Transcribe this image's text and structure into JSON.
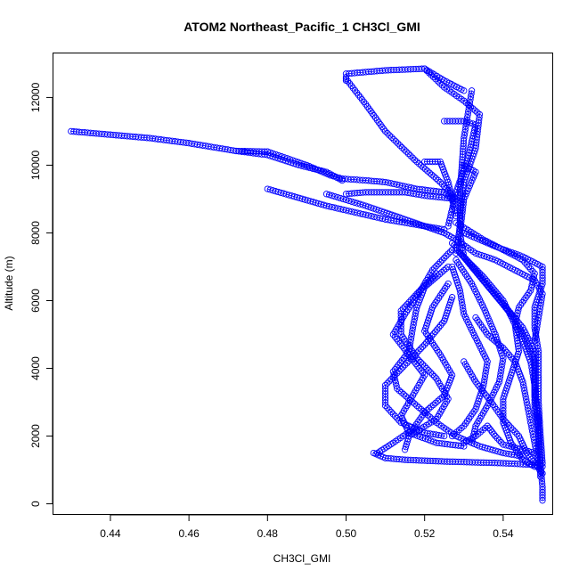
{
  "chart_data": {
    "type": "scatter",
    "title": "ATOM2 Northeast_Pacific_1 CH3Cl_GMI",
    "xlabel": "CH3Cl_GMI",
    "ylabel": "Altitude (m)",
    "xlim": [
      0.4255,
      0.5525
    ],
    "ylim": [
      -300,
      13300
    ],
    "x_ticks": [
      0.44,
      0.46,
      0.48,
      0.5,
      0.52,
      0.54
    ],
    "x_tick_labels": [
      "0.44",
      "0.46",
      "0.48",
      "0.50",
      "0.52",
      "0.54"
    ],
    "y_ticks": [
      0,
      2000,
      4000,
      6000,
      8000,
      10000,
      12000
    ],
    "y_tick_labels": [
      "0",
      "2000",
      "4000",
      "6000",
      "8000",
      "10000",
      "12000"
    ],
    "grid": false,
    "marker": "open circle",
    "series": [
      {
        "color": "#0000ff",
        "segments": [
          [
            [
              0.43,
              11000
            ],
            [
              0.432,
              10980
            ],
            [
              0.44,
              10900
            ],
            [
              0.45,
              10800
            ],
            [
              0.46,
              10650
            ],
            [
              0.472,
              10420
            ],
            [
              0.48,
              10400
            ],
            [
              0.485,
              10200
            ],
            [
              0.49,
              10000
            ],
            [
              0.496,
              9700
            ],
            [
              0.499,
              9600
            ]
          ],
          [
            [
              0.472,
              10420
            ],
            [
              0.48,
              10300
            ],
            [
              0.488,
              10000
            ],
            [
              0.495,
              9800
            ],
            [
              0.499,
              9550
            ]
          ],
          [
            [
              0.499,
              9600
            ],
            [
              0.505,
              9550
            ],
            [
              0.51,
              9500
            ],
            [
              0.518,
              9300
            ],
            [
              0.525,
              9200
            ],
            [
              0.527,
              9000
            ]
          ],
          [
            [
              0.5,
              9150
            ],
            [
              0.505,
              9200
            ],
            [
              0.515,
              9200
            ],
            [
              0.52,
              9100
            ],
            [
              0.528,
              9000
            ]
          ],
          [
            [
              0.495,
              9150
            ],
            [
              0.505,
              8800
            ],
            [
              0.515,
              8400
            ],
            [
              0.525,
              8000
            ],
            [
              0.528,
              7800
            ]
          ],
          [
            [
              0.48,
              9300
            ],
            [
              0.495,
              8800
            ],
            [
              0.51,
              8400
            ],
            [
              0.525,
              8100
            ]
          ],
          [
            [
              0.5,
              12500
            ],
            [
              0.5,
              12700
            ],
            [
              0.51,
              12800
            ],
            [
              0.52,
              12850
            ],
            [
              0.525,
              12500
            ],
            [
              0.53,
              12200
            ]
          ],
          [
            [
              0.5,
              12550
            ],
            [
              0.505,
              11800
            ],
            [
              0.51,
              11000
            ],
            [
              0.518,
              10100
            ],
            [
              0.524,
              9500
            ],
            [
              0.528,
              9000
            ]
          ],
          [
            [
              0.52,
              12850
            ],
            [
              0.525,
              12300
            ],
            [
              0.53,
              11900
            ],
            [
              0.534,
              11500
            ],
            [
              0.533,
              10500
            ],
            [
              0.53,
              9500
            ],
            [
              0.529,
              8500
            ]
          ],
          [
            [
              0.52,
              10100
            ],
            [
              0.524,
              10100
            ],
            [
              0.526,
              9500
            ],
            [
              0.527,
              9000
            ],
            [
              0.528,
              8500
            ]
          ],
          [
            [
              0.525,
              11300
            ],
            [
              0.53,
              11300
            ],
            [
              0.533,
              11200
            ],
            [
              0.531,
              10200
            ],
            [
              0.528,
              9200
            ],
            [
              0.526,
              8200
            ]
          ],
          [
            [
              0.532,
              12200
            ],
            [
              0.531,
              11500
            ],
            [
              0.53,
              10800
            ],
            [
              0.5295,
              10000
            ],
            [
              0.529,
              9200
            ],
            [
              0.529,
              8200
            ],
            [
              0.528,
              7400
            ]
          ],
          [
            [
              0.53,
              10000
            ],
            [
              0.533,
              9800
            ],
            [
              0.53,
              9000
            ],
            [
              0.529,
              8000
            ],
            [
              0.53,
              7300
            ],
            [
              0.535,
              6600
            ],
            [
              0.54,
              5900
            ],
            [
              0.545,
              5200
            ],
            [
              0.548,
              4500
            ],
            [
              0.548,
              3500
            ],
            [
              0.549,
              2500
            ],
            [
              0.549,
              1500
            ],
            [
              0.5495,
              800
            ]
          ],
          [
            [
              0.527,
              7700
            ],
            [
              0.532,
              7000
            ],
            [
              0.537,
              6300
            ],
            [
              0.542,
              5600
            ],
            [
              0.546,
              4800
            ],
            [
              0.548,
              4200
            ],
            [
              0.548,
              3200
            ],
            [
              0.549,
              2200
            ],
            [
              0.5495,
              1200
            ],
            [
              0.55,
              500
            ],
            [
              0.55,
              100
            ]
          ],
          [
            [
              0.528,
              8300
            ],
            [
              0.535,
              7800
            ],
            [
              0.54,
              7500
            ],
            [
              0.545,
              7200
            ],
            [
              0.548,
              6800
            ],
            [
              0.547,
              6300
            ],
            [
              0.544,
              5800
            ],
            [
              0.543,
              5300
            ],
            [
              0.545,
              4800
            ],
            [
              0.547,
              4200
            ],
            [
              0.548,
              3500
            ],
            [
              0.548,
              2800
            ],
            [
              0.549,
              2200
            ]
          ],
          [
            [
              0.53,
              8000
            ],
            [
              0.538,
              7600
            ],
            [
              0.545,
              7300
            ],
            [
              0.55,
              7000
            ],
            [
              0.55,
              6500
            ],
            [
              0.548,
              5800
            ],
            [
              0.548,
              5200
            ],
            [
              0.549,
              4500
            ],
            [
              0.549,
              3800
            ],
            [
              0.549,
              3000
            ],
            [
              0.5495,
              2000
            ],
            [
              0.55,
              1200
            ]
          ],
          [
            [
              0.528,
              7800
            ],
            [
              0.533,
              7400
            ],
            [
              0.538,
              7200
            ],
            [
              0.543,
              6900
            ],
            [
              0.548,
              6600
            ],
            [
              0.55,
              6200
            ],
            [
              0.549,
              5500
            ],
            [
              0.548,
              4800
            ]
          ],
          [
            [
              0.527,
              7500
            ],
            [
              0.522,
              6900
            ],
            [
              0.519,
              6300
            ],
            [
              0.515,
              5600
            ],
            [
              0.512,
              5000
            ],
            [
              0.516,
              4400
            ],
            [
              0.52,
              3800
            ],
            [
              0.517,
              3200
            ],
            [
              0.514,
              2600
            ],
            [
              0.516,
              2100
            ],
            [
              0.523,
              1800
            ],
            [
              0.53,
              1700
            ]
          ],
          [
            [
              0.526,
              7000
            ],
            [
              0.52,
              6400
            ],
            [
              0.518,
              5800
            ],
            [
              0.517,
              5200
            ],
            [
              0.516,
              4500
            ],
            [
              0.512,
              3900
            ],
            [
              0.513,
              3400
            ],
            [
              0.518,
              2900
            ],
            [
              0.523,
              2400
            ],
            [
              0.528,
              2000
            ],
            [
              0.534,
              1700
            ],
            [
              0.54,
              1500
            ],
            [
              0.545,
              1400
            ]
          ],
          [
            [
              0.526,
              6500
            ],
            [
              0.522,
              5800
            ],
            [
              0.52,
              5100
            ],
            [
              0.524,
              4400
            ],
            [
              0.527,
              3800
            ],
            [
              0.525,
              3200
            ],
            [
              0.52,
              2700
            ],
            [
              0.517,
              2200
            ],
            [
              0.512,
              1800
            ],
            [
              0.508,
              1500
            ]
          ],
          [
            [
              0.523,
              6800
            ],
            [
              0.518,
              6200
            ],
            [
              0.514,
              5700
            ],
            [
              0.514,
              5000
            ],
            [
              0.518,
              4300
            ],
            [
              0.523,
              3700
            ],
            [
              0.526,
              3100
            ],
            [
              0.523,
              2500
            ],
            [
              0.516,
              2000
            ],
            [
              0.515,
              1600
            ]
          ],
          [
            [
              0.527,
              7000
            ],
            [
              0.529,
              6300
            ],
            [
              0.53,
              5600
            ],
            [
              0.533,
              4900
            ],
            [
              0.536,
              4200
            ],
            [
              0.535,
              3500
            ],
            [
              0.533,
              2800
            ],
            [
              0.53,
              2300
            ],
            [
              0.527,
              2000
            ]
          ],
          [
            [
              0.528,
              7200
            ],
            [
              0.532,
              6500
            ],
            [
              0.535,
              5800
            ],
            [
              0.538,
              5000
            ],
            [
              0.54,
              4300
            ],
            [
              0.539,
              3600
            ],
            [
              0.536,
              2900
            ],
            [
              0.533,
              2300
            ],
            [
              0.532,
              1800
            ]
          ],
          [
            [
              0.529,
              7400
            ],
            [
              0.535,
              6700
            ],
            [
              0.54,
              6000
            ],
            [
              0.543,
              5300
            ],
            [
              0.544,
              4500
            ],
            [
              0.542,
              3800
            ],
            [
              0.54,
              3100
            ],
            [
              0.54,
              2400
            ],
            [
              0.542,
              1800
            ],
            [
              0.545,
              1300
            ],
            [
              0.548,
              1100
            ]
          ],
          [
            [
              0.527,
              6100
            ],
            [
              0.525,
              5400
            ],
            [
              0.52,
              4700
            ],
            [
              0.515,
              4100
            ],
            [
              0.51,
              3500
            ],
            [
              0.51,
              2900
            ],
            [
              0.514,
              2400
            ],
            [
              0.52,
              2100
            ],
            [
              0.525,
              2000
            ]
          ],
          [
            [
              0.533,
              5500
            ],
            [
              0.536,
              5000
            ],
            [
              0.54,
              4600
            ],
            [
              0.543,
              4200
            ],
            [
              0.545,
              3600
            ],
            [
              0.546,
              3000
            ],
            [
              0.547,
              2400
            ],
            [
              0.548,
              1800
            ],
            [
              0.549,
              1200
            ]
          ],
          [
            [
              0.53,
              4200
            ],
            [
              0.533,
              3600
            ],
            [
              0.537,
              3000
            ],
            [
              0.54,
              2500
            ],
            [
              0.544,
              2000
            ],
            [
              0.546,
              1500
            ],
            [
              0.548,
              1200
            ],
            [
              0.55,
              900
            ]
          ],
          [
            [
              0.507,
              1500
            ],
            [
              0.51,
              1350
            ],
            [
              0.515,
              1300
            ],
            [
              0.525,
              1250
            ],
            [
              0.54,
              1200
            ],
            [
              0.548,
              1150
            ],
            [
              0.55,
              1100
            ]
          ],
          [
            [
              0.53,
              1800
            ],
            [
              0.533,
              2000
            ],
            [
              0.536,
              2300
            ],
            [
              0.538,
              2000
            ],
            [
              0.54,
              1750
            ],
            [
              0.545,
              1600
            ],
            [
              0.548,
              1500
            ]
          ]
        ]
      }
    ]
  }
}
